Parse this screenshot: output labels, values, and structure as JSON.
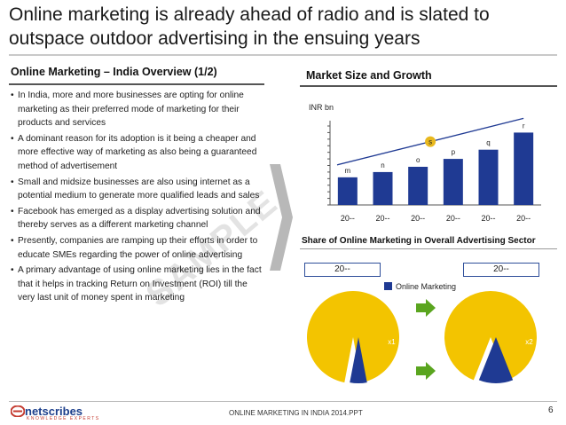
{
  "title": "Online marketing is already ahead of radio and is slated to outspace outdoor advertising in the ensuing years",
  "left_section": {
    "heading": "Online Marketing – India Overview (1/2)",
    "bullets": [
      "In India, more and more businesses are opting for online marketing as their preferred mode of marketing for their products and services",
      "A dominant reason for its adoption is it being a cheaper and more effective way of marketing as also being a guaranteed method of advertisement",
      "Small and midsize businesses are also using internet as a potential medium to generate more qualified leads and sales",
      "Facebook has emerged as a display advertising solution and thereby serves as a different marketing channel",
      "Presently, companies are ramping up their efforts in order to educate SMEs regarding the power of online advertising",
      "A primary advantage of using online marketing lies in the fact that it helps in tracking Return on Investment (ROI) till the very last unit of money spent in marketing"
    ],
    "bullet_char": "•",
    "watermark": "SAMPLE"
  },
  "market_section": {
    "heading": "Market Size and Growth"
  },
  "chart_data": [
    {
      "type": "bar",
      "title": "",
      "ylabel": "INR bn",
      "categories": [
        "20--",
        "20--",
        "20--",
        "20--",
        "20--",
        "20--"
      ],
      "values": [
        2.1,
        2.5,
        2.9,
        3.5,
        4.2,
        5.5
      ],
      "data_labels": [
        "m",
        "n",
        "o",
        "p",
        "q",
        "r"
      ],
      "trend_label": "s",
      "ylim": [
        0,
        6
      ],
      "bar_color": "#1f3a93",
      "grid": false
    },
    {
      "type": "pie",
      "title": "Share of Online Marketing in Overall Advertising Sector",
      "legend": [
        "Online Marketing"
      ],
      "charts": [
        {
          "year_label": "20--",
          "slice_label": "x1",
          "online_share": 0.06
        },
        {
          "year_label": "20--",
          "slice_label": "x2",
          "online_share": 0.12
        }
      ],
      "colors": {
        "online": "#1f3a93",
        "rest": "#f3c400"
      }
    }
  ],
  "colors": {
    "accent_blue": "#1f3a93",
    "pie_yellow": "#f3c400",
    "trend_circle": "#e8b81e",
    "arrow_green": "#5aa51f",
    "chevron_gray": "#b8b8b8"
  },
  "footer": {
    "logo_name": "netscribes",
    "logo_tagline": "KNOWLEDGE EXPERTS",
    "doc_name": "ONLINE MARKETING IN INDIA 2014.PPT",
    "page_number": "6"
  }
}
